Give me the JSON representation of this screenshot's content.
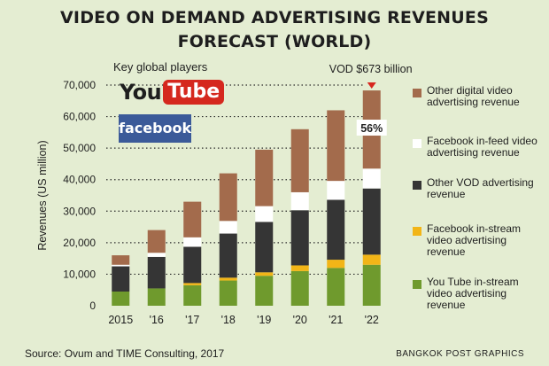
{
  "header": {
    "title_line1": "VIDEO ON DEMAND ADVERTISING REVENUES",
    "title_line2": "FORECAST (WORLD)"
  },
  "players": {
    "label": "Key global players",
    "youtube_you": "You",
    "youtube_tube": "Tube",
    "facebook": "facebook"
  },
  "footer": {
    "source": "Source: Ovum and TIME Consulting, 2017",
    "credit": "BANGKOK POST GRAPHICS"
  },
  "colors": {
    "background": "#e4edd2",
    "youtube_red": "#d5281e",
    "facebook_blue": "#3b5a99",
    "marker": "#d7261e"
  },
  "chart_data": {
    "type": "bar",
    "stacked": true,
    "ylabel": "Revenues (US million)",
    "ylim": [
      0,
      70000
    ],
    "yticks": [
      0,
      10000,
      20000,
      30000,
      40000,
      50000,
      60000,
      70000
    ],
    "ytick_labels": [
      "0",
      "10,000",
      "20,000",
      "30,000",
      "40,000",
      "50,000",
      "60,000",
      "70,000"
    ],
    "categories": [
      "2015",
      "'16",
      "'17",
      "'18",
      "'19",
      "'20",
      "'21",
      "'22"
    ],
    "series": [
      {
        "name": "You Tube in-stream video advertising revenue",
        "color": "#6f9a2d",
        "values": [
          4500,
          5500,
          6500,
          8000,
          9500,
          11000,
          12000,
          13000
        ]
      },
      {
        "name": "Facebook in-stream video advertising revenue",
        "color": "#f2b517",
        "values": [
          0,
          0,
          700,
          900,
          1100,
          1800,
          2600,
          3200
        ]
      },
      {
        "name": "Other VOD advertising revenue",
        "color": "#353535",
        "values": [
          8000,
          10000,
          11500,
          14000,
          16000,
          17500,
          19000,
          21000
        ]
      },
      {
        "name": "Facebook in-feed video advertising revenue",
        "color": "#ffffff",
        "values": [
          500,
          1300,
          3000,
          4000,
          5000,
          5700,
          6000,
          6300
        ]
      },
      {
        "name": "Other digital video advertising revenue",
        "color": "#a36b4c",
        "values": [
          3000,
          7200,
          11300,
          15100,
          17900,
          20000,
          22400,
          24800
        ]
      }
    ],
    "annotations": {
      "total_label": "VOD $673 billion",
      "share_label": "56%",
      "share_value": 56
    },
    "grid": "dotted reference lines at each tick for the final bar"
  }
}
